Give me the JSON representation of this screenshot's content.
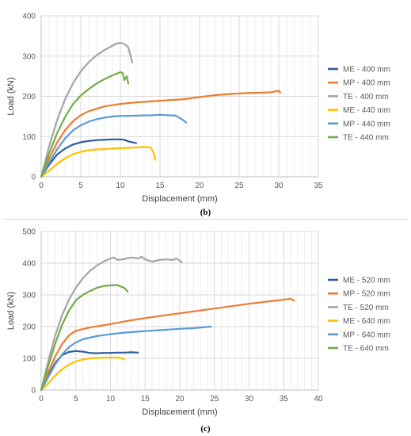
{
  "chart_data": [
    {
      "type": "line",
      "caption": "(b)",
      "xlabel": "Displacement (mm)",
      "ylabel": "Load (kN)",
      "xlim": [
        0,
        35
      ],
      "ylim": [
        0,
        400
      ],
      "xticks": [
        0,
        5,
        10,
        15,
        20,
        25,
        30,
        35
      ],
      "yticks": [
        0,
        100,
        200,
        300,
        400
      ],
      "grid": true,
      "legend_position": "right",
      "series": [
        {
          "name": "ME - 400 mm",
          "color": "#2e5c9e",
          "x": [
            0,
            1,
            2,
            3,
            4,
            5,
            6,
            7,
            8,
            9,
            10,
            10.5,
            11,
            11.5,
            12
          ],
          "y": [
            0,
            30,
            55,
            70,
            80,
            86,
            89,
            91,
            92,
            93,
            93,
            92,
            88,
            86,
            84
          ]
        },
        {
          "name": "MP - 400 mm",
          "color": "#ed7d31",
          "x": [
            0,
            1,
            2,
            3,
            4,
            5,
            6,
            8,
            10,
            12,
            15,
            18,
            20,
            22,
            24,
            26,
            28,
            29,
            30,
            30.2
          ],
          "y": [
            0,
            45,
            85,
            115,
            138,
            153,
            163,
            175,
            181,
            185,
            189,
            193,
            198,
            203,
            206,
            208,
            209,
            210,
            214,
            209
          ]
        },
        {
          "name": "TE - 400 mm",
          "color": "#a5a5a5",
          "x": [
            0,
            1,
            2,
            3,
            4,
            5,
            6,
            7,
            8,
            9,
            9.5,
            10,
            10.5,
            11,
            11.3,
            11.5
          ],
          "y": [
            0,
            75,
            140,
            192,
            232,
            262,
            285,
            302,
            315,
            326,
            331,
            333,
            330,
            322,
            300,
            284
          ]
        },
        {
          "name": "ME - 440 mm",
          "color": "#ffc000",
          "x": [
            0,
            1,
            2,
            3,
            4,
            5,
            6,
            7,
            8,
            9,
            10,
            11,
            12,
            13,
            13.8,
            14.2,
            14.4
          ],
          "y": [
            0,
            15,
            32,
            46,
            56,
            62,
            66,
            68,
            69,
            70,
            71,
            72,
            73,
            74,
            73,
            60,
            42
          ]
        },
        {
          "name": "MP - 440 mm",
          "color": "#5b9bd5",
          "x": [
            0,
            1,
            2,
            3,
            4,
            5,
            6,
            7,
            8,
            9,
            10,
            12,
            14,
            15,
            16,
            17,
            17.5,
            18,
            18.3
          ],
          "y": [
            0,
            35,
            68,
            95,
            115,
            128,
            137,
            143,
            147,
            150,
            151,
            152,
            153,
            154,
            153,
            152,
            146,
            140,
            135
          ]
        },
        {
          "name": "TE - 440 mm",
          "color": "#70ad47",
          "x": [
            0,
            1,
            2,
            3,
            4,
            5,
            6,
            7,
            8,
            9,
            9.5,
            10,
            10.3,
            10.5,
            10.8,
            11
          ],
          "y": [
            0,
            58,
            108,
            148,
            180,
            202,
            218,
            232,
            243,
            252,
            256,
            260,
            258,
            240,
            250,
            232
          ]
        }
      ]
    },
    {
      "type": "line",
      "caption": "(c)",
      "xlabel": "Displacement (mm)",
      "ylabel": "Load (kN)",
      "xlim": [
        0,
        40
      ],
      "ylim": [
        0,
        500
      ],
      "xticks": [
        0,
        5,
        10,
        15,
        20,
        25,
        30,
        35,
        40
      ],
      "yticks": [
        0,
        100,
        200,
        300,
        400,
        500
      ],
      "grid": true,
      "legend_position": "right",
      "series": [
        {
          "name": "ME - 520 mm",
          "color": "#2e5c9e",
          "x": [
            0,
            1,
            2,
            3,
            4,
            5,
            6,
            7,
            8,
            9,
            10,
            11,
            12,
            13,
            14
          ],
          "y": [
            0,
            45,
            85,
            110,
            120,
            123,
            121,
            117,
            116,
            117,
            117,
            118,
            118,
            119,
            118
          ]
        },
        {
          "name": "MP - 520 mm",
          "color": "#ed7d31",
          "x": [
            0,
            1,
            2,
            3,
            4,
            5,
            7,
            10,
            13,
            16,
            20,
            25,
            30,
            33,
            35,
            36,
            36.5
          ],
          "y": [
            0,
            55,
            105,
            145,
            172,
            187,
            197,
            208,
            220,
            230,
            242,
            257,
            272,
            280,
            285,
            288,
            282
          ]
        },
        {
          "name": "TE - 520 mm",
          "color": "#a5a5a5",
          "x": [
            0,
            1,
            2,
            3,
            4,
            5,
            6,
            7,
            8,
            9,
            10,
            10.5,
            11,
            12,
            13,
            14,
            14.5,
            15,
            16,
            17,
            18,
            19,
            19.5,
            20,
            20.3
          ],
          "y": [
            0,
            90,
            170,
            235,
            285,
            323,
            352,
            375,
            392,
            405,
            415,
            418,
            410,
            413,
            418,
            415,
            420,
            412,
            405,
            410,
            412,
            410,
            415,
            408,
            403
          ]
        },
        {
          "name": "ME - 640 mm",
          "color": "#ffc000",
          "x": [
            0,
            1,
            2,
            3,
            4,
            5,
            6,
            7,
            8,
            9,
            10,
            11,
            11.5,
            12
          ],
          "y": [
            0,
            20,
            45,
            65,
            80,
            90,
            96,
            100,
            101,
            102,
            103,
            102,
            101,
            96
          ]
        },
        {
          "name": "MP - 640 mm",
          "color": "#5b9bd5",
          "x": [
            0,
            1,
            2,
            3,
            4,
            5,
            6,
            8,
            10,
            12,
            15,
            18,
            20,
            22,
            24.5
          ],
          "y": [
            0,
            40,
            80,
            112,
            135,
            150,
            160,
            170,
            176,
            181,
            186,
            190,
            193,
            195,
            200
          ]
        },
        {
          "name": "TE - 640 mm",
          "color": "#70ad47",
          "x": [
            0,
            1,
            2,
            3,
            4,
            5,
            6,
            7,
            8,
            9,
            10,
            11,
            12,
            12.5
          ],
          "y": [
            0,
            75,
            145,
            205,
            250,
            283,
            300,
            312,
            322,
            328,
            330,
            331,
            322,
            310
          ]
        }
      ]
    }
  ]
}
